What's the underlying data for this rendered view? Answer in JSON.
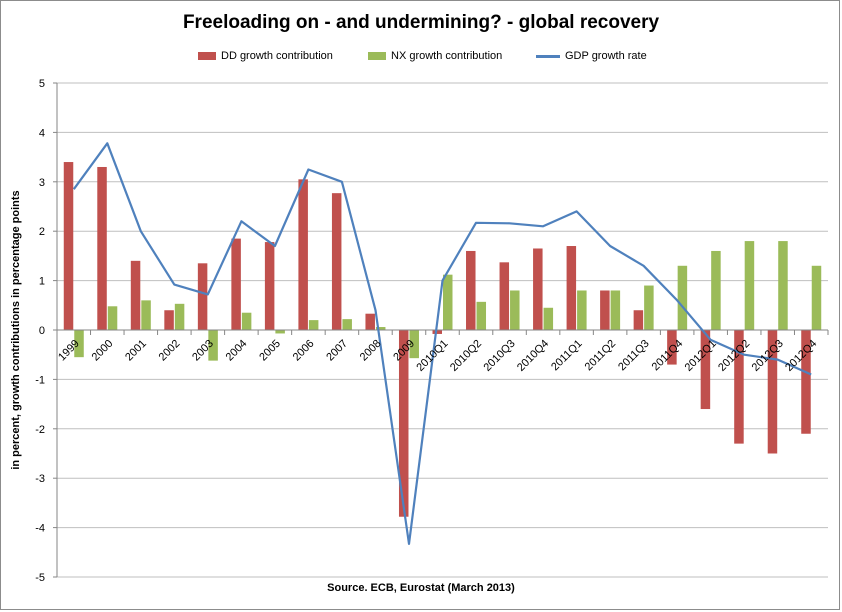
{
  "chart_data": {
    "type": "bar",
    "title": "Freeloading on - and undermining? - global recovery",
    "xlabel": "Source. ECB, Eurostat (March  2013)",
    "ylabel": "in percent, growth contributions in percentage points",
    "ylim": [
      -5,
      5
    ],
    "yticks": [
      -5,
      -4,
      -3,
      -2,
      -1,
      0,
      1,
      2,
      3,
      4,
      5
    ],
    "grid": true,
    "legend_position": "top",
    "categories": [
      "1999",
      "2000",
      "2001",
      "2002",
      "2003",
      "2004",
      "2005",
      "2006",
      "2007",
      "2008",
      "2009",
      "2010Q1",
      "2010Q2",
      "2010Q3",
      "2010Q4",
      "2011Q1",
      "2011Q2",
      "2011Q3",
      "2011Q4",
      "2012Q1",
      "2012Q2",
      "2012Q3",
      "2012Q4"
    ],
    "series": [
      {
        "name": "DD growth contribution",
        "kind": "bar",
        "color": "#c0504d",
        "values": [
          3.4,
          3.3,
          1.4,
          0.4,
          1.35,
          1.85,
          1.78,
          3.05,
          2.77,
          0.33,
          -3.78,
          -0.08,
          1.6,
          1.37,
          1.65,
          1.7,
          0.8,
          0.4,
          -0.7,
          -1.6,
          -2.3,
          -2.5,
          -2.1
        ]
      },
      {
        "name": "NX growth contribution",
        "kind": "bar",
        "color": "#9bbb59",
        "values": [
          -0.55,
          0.48,
          0.6,
          0.53,
          -0.62,
          0.35,
          -0.07,
          0.2,
          0.22,
          0.06,
          -0.57,
          1.12,
          0.57,
          0.8,
          0.45,
          0.8,
          0.8,
          0.9,
          1.3,
          1.6,
          1.8,
          1.8,
          1.3
        ]
      },
      {
        "name": "GDP growth rate",
        "kind": "line",
        "color": "#4f81bd",
        "values": [
          2.85,
          3.78,
          2.0,
          0.92,
          0.72,
          2.2,
          1.7,
          3.25,
          3.0,
          0.4,
          -4.33,
          1.0,
          2.17,
          2.16,
          2.1,
          2.4,
          1.7,
          1.3,
          0.6,
          -0.2,
          -0.5,
          -0.6,
          -0.9
        ]
      }
    ]
  }
}
